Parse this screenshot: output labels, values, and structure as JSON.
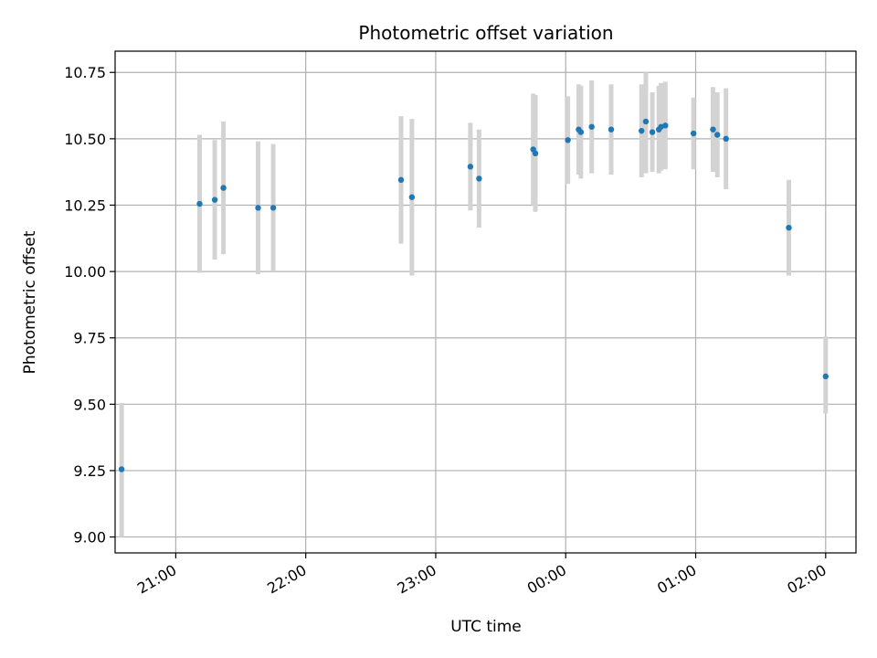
{
  "chart_data": {
    "type": "scatter",
    "title": "Photometric offset variation",
    "xlabel": "UTC time",
    "ylabel": "Photometric offset",
    "x_axis": {
      "type": "time",
      "range": [
        "20:32",
        "02:14"
      ],
      "ticks": [
        "21:00",
        "22:00",
        "23:00",
        "00:00",
        "01:00",
        "02:00"
      ]
    },
    "y_axis": {
      "range": [
        8.94,
        10.83
      ],
      "ticks": [
        "9.00",
        "9.25",
        "9.50",
        "9.75",
        "10.00",
        "10.25",
        "10.50",
        "10.75"
      ]
    },
    "grid": true,
    "colors": {
      "point": "#1f77b4",
      "errorbar": "#d3d3d3",
      "grid": "#b0b0b0"
    },
    "series": [
      {
        "points": [
          {
            "x": "20:35",
            "y": 9.255,
            "low": 9.0,
            "high": 9.505
          },
          {
            "x": "21:11",
            "y": 10.255,
            "low": 9.995,
            "high": 10.515
          },
          {
            "x": "21:18",
            "y": 10.27,
            "low": 10.045,
            "high": 10.495
          },
          {
            "x": "21:22",
            "y": 10.315,
            "low": 10.065,
            "high": 10.565
          },
          {
            "x": "21:38",
            "y": 10.24,
            "low": 9.99,
            "high": 10.49
          },
          {
            "x": "21:45",
            "y": 10.24,
            "low": 10.0,
            "high": 10.48
          },
          {
            "x": "22:44",
            "y": 10.345,
            "low": 10.105,
            "high": 10.585
          },
          {
            "x": "22:49",
            "y": 10.28,
            "low": 9.985,
            "high": 10.575
          },
          {
            "x": "23:16",
            "y": 10.395,
            "low": 10.23,
            "high": 10.56
          },
          {
            "x": "23:20",
            "y": 10.35,
            "low": 10.165,
            "high": 10.535
          },
          {
            "x": "23:45",
            "y": 10.46,
            "low": 10.25,
            "high": 10.67
          },
          {
            "x": "23:46",
            "y": 10.445,
            "low": 10.225,
            "high": 10.665
          },
          {
            "x": "00:01",
            "y": 10.495,
            "low": 10.33,
            "high": 10.66
          },
          {
            "x": "00:06",
            "y": 10.535,
            "low": 10.365,
            "high": 10.705
          },
          {
            "x": "00:07",
            "y": 10.525,
            "low": 10.35,
            "high": 10.7
          },
          {
            "x": "00:12",
            "y": 10.545,
            "low": 10.37,
            "high": 10.72
          },
          {
            "x": "00:21",
            "y": 10.535,
            "low": 10.365,
            "high": 10.705
          },
          {
            "x": "00:35",
            "y": 10.53,
            "low": 10.355,
            "high": 10.705
          },
          {
            "x": "00:37",
            "y": 10.565,
            "low": 10.37,
            "high": 10.75
          },
          {
            "x": "00:40",
            "y": 10.525,
            "low": 10.375,
            "high": 10.675
          },
          {
            "x": "00:43",
            "y": 10.535,
            "low": 10.37,
            "high": 10.7
          },
          {
            "x": "00:44",
            "y": 10.545,
            "low": 10.38,
            "high": 10.71
          },
          {
            "x": "00:46",
            "y": 10.55,
            "low": 10.385,
            "high": 10.715
          },
          {
            "x": "00:59",
            "y": 10.52,
            "low": 10.385,
            "high": 10.655
          },
          {
            "x": "01:08",
            "y": 10.535,
            "low": 10.375,
            "high": 10.695
          },
          {
            "x": "01:10",
            "y": 10.515,
            "low": 10.355,
            "high": 10.675
          },
          {
            "x": "01:14",
            "y": 10.5,
            "low": 10.31,
            "high": 10.69
          },
          {
            "x": "01:43",
            "y": 10.165,
            "low": 9.985,
            "high": 10.345
          },
          {
            "x": "02:00",
            "y": 9.605,
            "low": 9.465,
            "high": 9.755
          }
        ]
      }
    ]
  }
}
